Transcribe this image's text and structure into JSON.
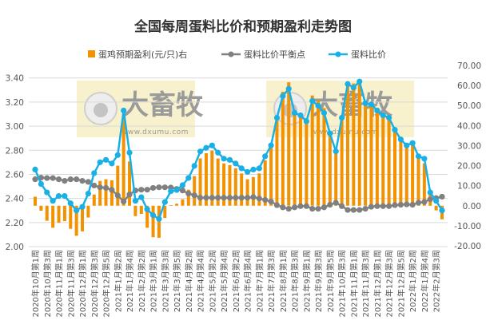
{
  "chart_data": {
    "type": "bar+line",
    "title": "全国每周蛋料比价和预期盈利走势图",
    "legend": [
      "蛋鸡预期盈利(元/只)右",
      "蛋料比价平衡点",
      "蛋料比价"
    ],
    "legend_position": "top",
    "grid": true,
    "left_axis": {
      "ylim": [
        2.0,
        3.4
      ],
      "ticks": [
        "3.40",
        "3.20",
        "3.00",
        "2.80",
        "2.60",
        "2.40",
        "2.20",
        "2.00"
      ]
    },
    "right_axis": {
      "ylim": [
        -20,
        70
      ],
      "ticks": [
        "70.00",
        "60.00",
        "50.00",
        "40.00",
        "30.00",
        "20.00",
        "10.00",
        "0.00",
        "-10.00",
        "-20.00"
      ]
    },
    "x_tick_labels": [
      "2020年10月第1周",
      "2020年10月第3周",
      "2020年11月第1周",
      "2020年11月第3周",
      "2020年12月第1周",
      "2020年12月第3周",
      "2020年12月第5周",
      "2021年1月第2周",
      "2021年1月第4周",
      "2021年2月第2周",
      "2021年3月第1周",
      "2021年3月第3周",
      "2021年3月第5周",
      "2021年4月第2周",
      "2021年4月第4周",
      "2021年5月第2周",
      "2021年5月第4周",
      "2021年6月第2周",
      "2021年6月第4周",
      "2021年7月第1周",
      "2021年7月第3周",
      "2021年8月第1周",
      "2021年8月第3周",
      "2021年9月第1周",
      "2021年9月第3周",
      "2021年9月第5周",
      "2021年10月第3周",
      "2021年11月第1周",
      "2021年11月第3周",
      "2021年12月第1周",
      "2021年12月第3周",
      "2021年12月第5周",
      "2022年1月第2周",
      "2022年1月第4周",
      "2022年2月第3周"
    ],
    "series": [
      {
        "name": "蛋鸡预期盈利(元/只)右",
        "type": "bar",
        "axis": "right",
        "color": "#f39200",
        "values": [
          4.5,
          -2.5,
          -7.5,
          -11.0,
          -8.5,
          -7.7,
          -11.5,
          -15.0,
          -12.8,
          -5.9,
          5.6,
          12.4,
          13.2,
          12.7,
          20.0,
          44.4,
          22.1,
          -5.2,
          -4.1,
          -11.0,
          -15.7,
          -16.0,
          -6.1,
          0.3,
          1.0,
          3.2,
          8.0,
          14.8,
          23.6,
          26.2,
          27.5,
          23.6,
          21.1,
          20.3,
          18.7,
          16.1,
          13.2,
          14.3,
          16.1,
          22.7,
          28.8,
          42.9,
          56.9,
          61.6,
          47.0,
          45.0,
          43.7,
          55.0,
          52.6,
          48.7,
          35.0,
          25.8,
          44.4,
          61.4,
          61.0,
          63.0,
          52.3,
          50.7,
          47.0,
          45.0,
          43.0,
          37.1,
          32.1,
          29.3,
          31.4,
          23.8,
          21.1,
          5.9,
          -2.3,
          -6.8
        ]
      },
      {
        "name": "蛋料比价平衡点",
        "type": "line",
        "axis": "right",
        "color": "#808080",
        "values": [
          13.2,
          14.0,
          13.8,
          13.8,
          13.2,
          12.4,
          13.2,
          13.2,
          12.4,
          11.9,
          10.1,
          9.2,
          8.9,
          7.9,
          5.1,
          2.1,
          5.6,
          7.6,
          8.0,
          8.0,
          8.9,
          9.2,
          9.2,
          9.1,
          8.4,
          7.6,
          6.1,
          5.2,
          4.0,
          4.0,
          4.0,
          4.0,
          4.0,
          4.0,
          4.0,
          4.0,
          4.0,
          4.3,
          3.6,
          2.9,
          2.1,
          0.3,
          -0.8,
          -1.5,
          -0.8,
          -0.2,
          -0.2,
          -1.5,
          -1.5,
          -0.8,
          0.5,
          1.5,
          -0.2,
          -2.1,
          -2.1,
          -2.1,
          -1.5,
          -0.5,
          -0.2,
          -0.2,
          -0.2,
          0.3,
          0.5,
          0.7,
          0.5,
          1.5,
          1.9,
          3.2,
          3.8,
          4.5
        ]
      },
      {
        "name": "蛋料比价",
        "type": "line",
        "axis": "left",
        "color": "#1ab0e6",
        "values": [
          2.64,
          2.52,
          2.45,
          2.38,
          2.42,
          2.42,
          2.36,
          2.3,
          2.33,
          2.44,
          2.61,
          2.7,
          2.72,
          2.69,
          2.76,
          3.13,
          2.78,
          2.38,
          2.41,
          2.31,
          2.26,
          2.23,
          2.37,
          2.46,
          2.47,
          2.51,
          2.57,
          2.67,
          2.79,
          2.82,
          2.84,
          2.78,
          2.73,
          2.72,
          2.69,
          2.65,
          2.62,
          2.64,
          2.65,
          2.75,
          2.84,
          3.07,
          3.25,
          3.31,
          3.11,
          3.09,
          3.04,
          3.21,
          3.17,
          3.11,
          2.94,
          2.79,
          3.07,
          3.35,
          3.32,
          3.37,
          3.19,
          3.18,
          3.13,
          3.09,
          3.07,
          2.97,
          2.89,
          2.84,
          2.86,
          2.75,
          2.73,
          2.45,
          2.38,
          2.3
        ]
      }
    ]
  },
  "watermark": {
    "text": "大畜牧",
    "url": "www.dxumu.com"
  }
}
